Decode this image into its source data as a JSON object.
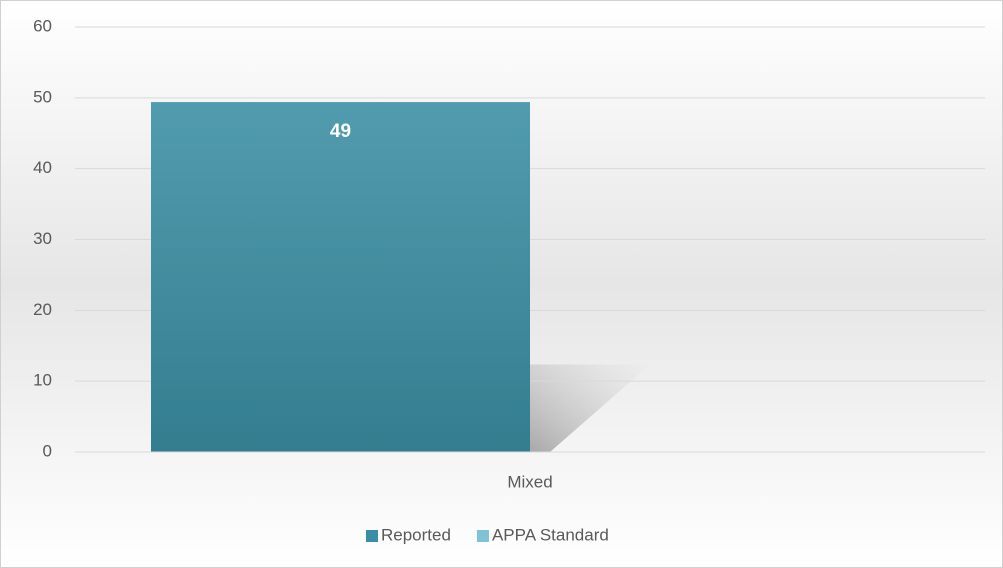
{
  "chart_data": {
    "type": "bar",
    "categories": [
      "Mixed"
    ],
    "series": [
      {
        "name": "Reported",
        "color": "#3a8ea3",
        "values": [
          49.4
        ],
        "value_labels": [
          "49"
        ]
      },
      {
        "name": "APPA Standard",
        "color": "#7ec2d5",
        "values": [
          null
        ]
      }
    ],
    "ylim": [
      0,
      60
    ],
    "yticks": [
      0,
      10,
      20,
      30,
      40,
      50,
      60
    ],
    "grid": true,
    "legend": "bottom"
  }
}
